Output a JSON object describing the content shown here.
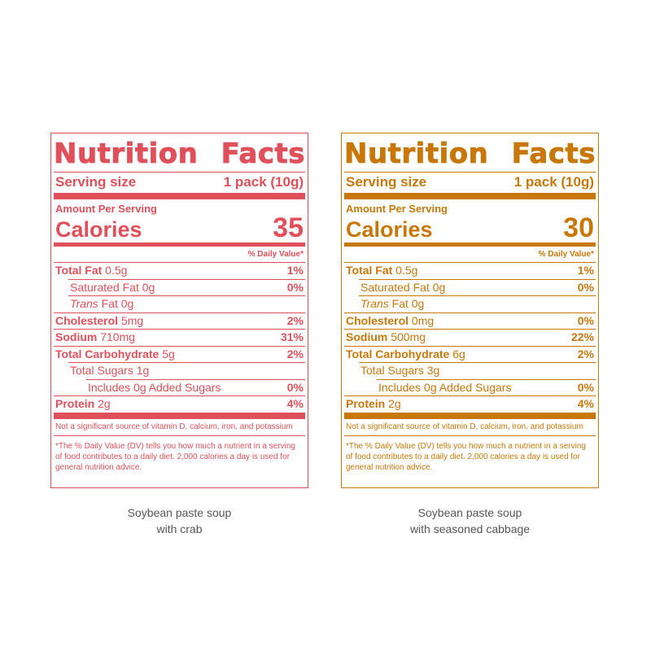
{
  "labels": [
    {
      "title_left": "Nutrition",
      "title_right": "Facts",
      "serving_label": "Serving size",
      "serving_value": "1 pack (10g)",
      "amount_per_serving": "Amount Per Serving",
      "calories_label": "Calories",
      "calories_value": "35",
      "dv_header": "% Daily Value*",
      "total_fat_label": "Total Fat",
      "total_fat_amount": " 0.5g",
      "total_fat_pct": "1%",
      "sat_fat": "Saturated Fat 0g",
      "sat_fat_pct": "0%",
      "trans_prefix": "Trans",
      "trans_rest": " Fat 0g",
      "chol_label": "Cholesterol",
      "chol_amount": " 5mg",
      "chol_pct": "2%",
      "sodium_label": "Sodium",
      "sodium_amount": " 710mg",
      "sodium_pct": "31%",
      "carb_label": "Total Carbohydrate",
      "carb_amount": " 5g",
      "carb_pct": "2%",
      "sugars": "Total Sugars 1g",
      "added_sugars": "Includes 0g Added Sugars",
      "added_sugars_pct": "0%",
      "protein_label": "Protein",
      "protein_amount": " 2g",
      "protein_pct": "4%",
      "note": "Not a significant source of vitamin D, calcium, iron, and potassium",
      "dv_note": "*The % Daily Value (DV) tells you how much a nutrient in a serving of food contributes to a daily diet. 2,000 calories a day is used for general nutrition advice.",
      "caption_line1": "Soybean paste soup",
      "caption_line2": "with crab",
      "color": "#e0505a"
    },
    {
      "title_left": "Nutrition",
      "title_right": "Facts",
      "serving_label": "Serving size",
      "serving_value": "1 pack (10g)",
      "amount_per_serving": "Amount Per Serving",
      "calories_label": "Calories",
      "calories_value": "30",
      "dv_header": "% Daily Value*",
      "total_fat_label": "Total Fat",
      "total_fat_amount": " 0.5g",
      "total_fat_pct": "1%",
      "sat_fat": "Saturated Fat 0g",
      "sat_fat_pct": "0%",
      "trans_prefix": "Trans",
      "trans_rest": " Fat 0g",
      "chol_label": "Cholesterol",
      "chol_amount": " 0mg",
      "chol_pct": "0%",
      "sodium_label": "Sodium",
      "sodium_amount": " 500mg",
      "sodium_pct": "22%",
      "carb_label": "Total Carbohydrate",
      "carb_amount": " 6g",
      "carb_pct": "2%",
      "sugars": "Total Sugars 3g",
      "added_sugars": "Includes 0g Added Sugars",
      "added_sugars_pct": "0%",
      "protein_label": "Protein",
      "protein_amount": " 2g",
      "protein_pct": "4%",
      "note": "Not a significant source of vitamin D, calcium, iron, and potassium",
      "dv_note": "*The % Daily Value (DV) tells you how much a nutrient in a serving of food contributes to a daily diet. 2,000 calories a day is used for general nutrition advice.",
      "caption_line1": "Soybean paste soup",
      "caption_line2": "with seasoned cabbage",
      "color": "#c8780a"
    }
  ]
}
